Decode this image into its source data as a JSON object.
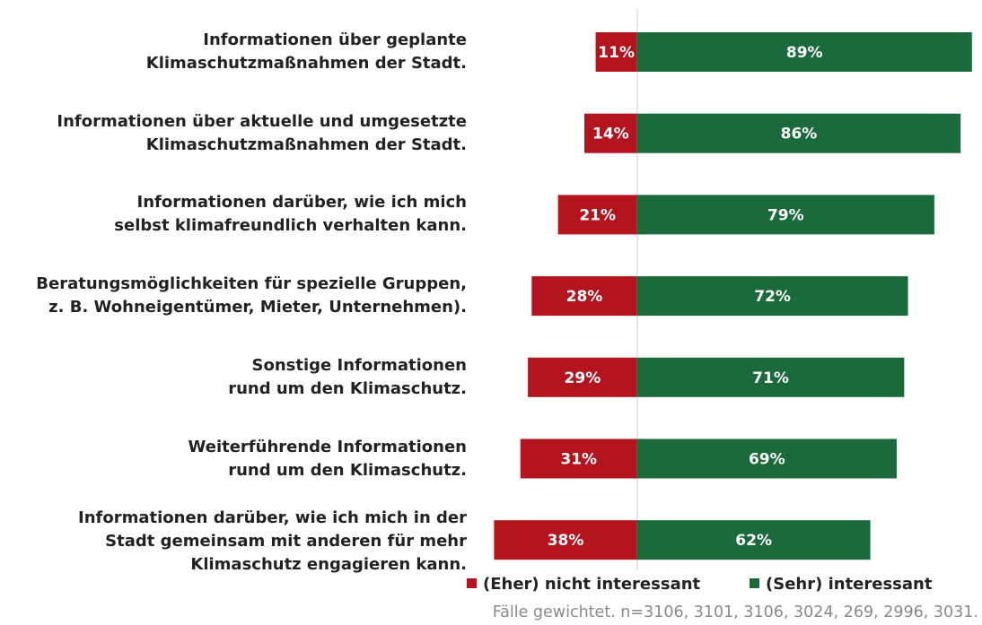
{
  "chart_data": {
    "type": "bar",
    "orientation": "horizontal",
    "layout": "diverging",
    "categories": [
      "Informationen über geplante\nKlimaschutzmaßnahmen der Stadt.",
      "Informationen über aktuelle und umgesetzte\nKlimaschutzmaßnahmen der Stadt.",
      "Informationen darüber, wie ich mich\nselbst klimafreundlich verhalten kann.",
      "Beratungsmöglichkeiten für spezielle Gruppen,\nz. B. Wohneigentümer, Mieter, Unternehmen).",
      "Sonstige Informationen\nrund um den Klimaschutz.",
      "Weiterführende Informationen\nrund um den Klimaschutz.",
      "Informationen darüber, wie ich mich in der\nStadt gemeinsam mit anderen für mehr\nKlimaschutz engagieren kann."
    ],
    "series": [
      {
        "name": "(Eher) nicht interessant",
        "color": "#b3141e",
        "direction": "left",
        "values": [
          11,
          14,
          21,
          28,
          29,
          31,
          38
        ],
        "value_labels": [
          "11%",
          "14%",
          "21%",
          "28%",
          "29%",
          "31%",
          "38%"
        ]
      },
      {
        "name": "(Sehr) interessant",
        "color": "#1a6a3b",
        "direction": "right",
        "values": [
          89,
          86,
          79,
          72,
          71,
          69,
          62
        ],
        "value_labels": [
          "89%",
          "86%",
          "79%",
          "72%",
          "71%",
          "69%",
          "62%"
        ]
      }
    ],
    "xlim": [
      -40,
      90
    ],
    "legend": "bottom",
    "note": "Fälle gewichtet. n=3106, 3101, 3106, 3024, 269, 2996, 3031."
  }
}
